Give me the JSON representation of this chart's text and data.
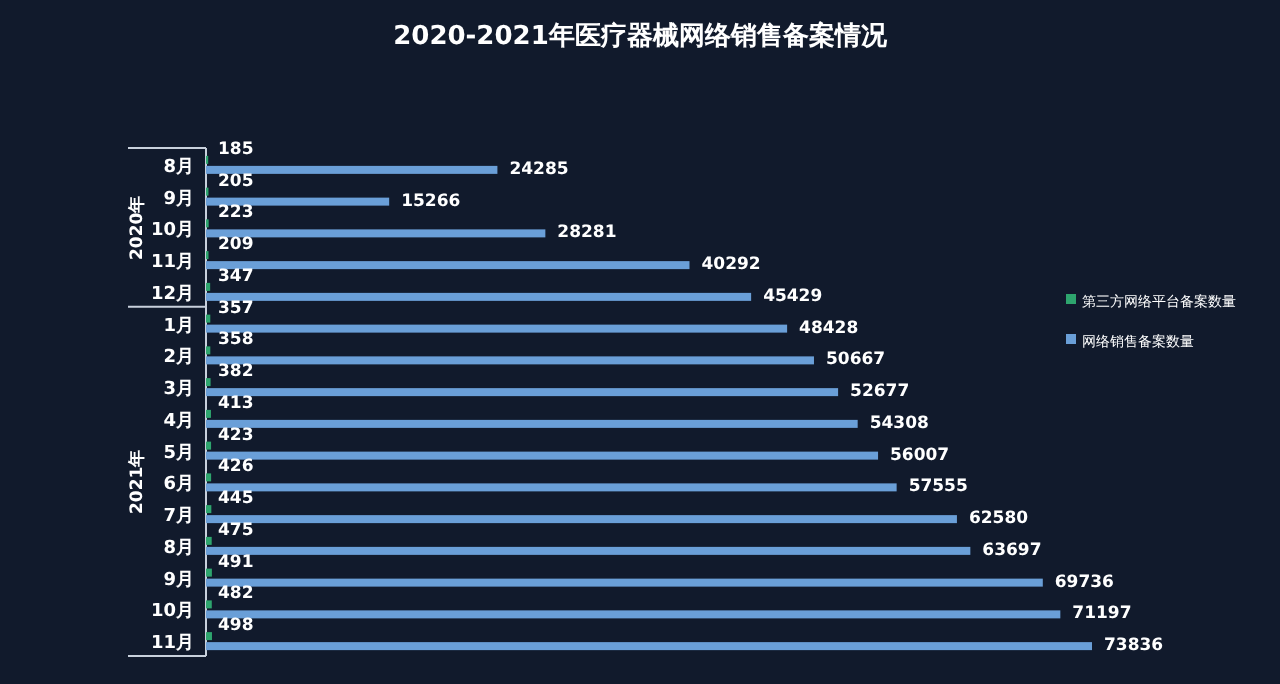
{
  "chart_data": {
    "type": "bar",
    "orientation": "horizontal",
    "title": "2020-2021年医疗器械网络销售备案情况",
    "categories": [
      "8月",
      "9月",
      "10月",
      "11月",
      "12月",
      "1月",
      "2月",
      "3月",
      "4月",
      "5月",
      "6月",
      "7月",
      "8月",
      "9月",
      "10月",
      "11月"
    ],
    "series": [
      {
        "name": "第三方网络平台备案数量",
        "color": "#2ea56e",
        "values": [
          185,
          205,
          223,
          209,
          347,
          357,
          358,
          382,
          413,
          423,
          426,
          445,
          475,
          491,
          482,
          498
        ]
      },
      {
        "name": "网络销售备案数量",
        "color": "#6a9fd8",
        "values": [
          24285,
          15266,
          28281,
          40292,
          45429,
          48428,
          50667,
          52677,
          54308,
          56007,
          57555,
          62580,
          63697,
          69736,
          71197,
          73836
        ]
      }
    ],
    "data_labels": true,
    "legend": "right",
    "annotations": [
      "2020年",
      "2021年"
    ]
  }
}
